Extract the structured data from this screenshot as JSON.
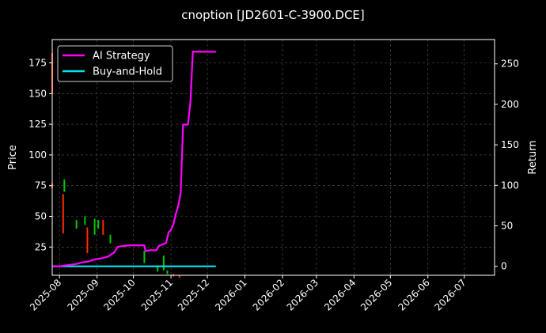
{
  "chart_data": {
    "type": "line",
    "title": "cnoption [JD2601-C-3900.DCE]",
    "xlabel": "",
    "ylabel_left": "Price",
    "ylabel_right": "Return",
    "x_ticks": [
      "2025-08",
      "2025-09",
      "2025-10",
      "2025-11",
      "2025-12",
      "2026-01",
      "2026-02",
      "2026-03",
      "2026-04",
      "2026-05",
      "2026-06",
      "2026-07"
    ],
    "x_range": [
      "2025-07-26",
      "2026-07-26"
    ],
    "ylim_left": [
      2,
      194
    ],
    "yticks_left": [
      25,
      50,
      75,
      100,
      125,
      150,
      175
    ],
    "ylim_right": [
      -11,
      280
    ],
    "yticks_right": [
      0,
      50,
      100,
      150,
      200,
      250
    ],
    "grid": true,
    "legend_position": "top-left",
    "colors": {
      "background": "#000000",
      "ai_strategy": "#ff00ff",
      "buy_and_hold": "#00e5ee",
      "candle_up": "#00c800",
      "candle_down": "#ff2a00",
      "grid": "#555555",
      "text": "#ffffff"
    },
    "series": [
      {
        "name": "AI Strategy",
        "axis": "right",
        "x": [
          "2025-07-26",
          "2025-08-01",
          "2025-08-05",
          "2025-08-10",
          "2025-08-15",
          "2025-08-20",
          "2025-08-25",
          "2025-08-29",
          "2025-09-01",
          "2025-09-05",
          "2025-09-10",
          "2025-09-15",
          "2025-09-18",
          "2025-09-22",
          "2025-09-28",
          "2025-10-03",
          "2025-10-10",
          "2025-10-11",
          "2025-10-15",
          "2025-10-20",
          "2025-10-22",
          "2025-10-28",
          "2025-10-30",
          "2025-11-01",
          "2025-11-03",
          "2025-11-05",
          "2025-11-07",
          "2025-11-09",
          "2025-11-11",
          "2025-11-13",
          "2025-11-15",
          "2025-11-17",
          "2025-11-19",
          "2025-11-22",
          "2025-12-08"
        ],
        "values": [
          0,
          0,
          1,
          2,
          3,
          5,
          6,
          8,
          9,
          10,
          12,
          17,
          24,
          25,
          26,
          26,
          26,
          19,
          20,
          20,
          25,
          29,
          42,
          45,
          52,
          65,
          75,
          90,
          175,
          175,
          175,
          202,
          265,
          265,
          265
        ]
      },
      {
        "name": "Buy-and-Hold",
        "axis": "right",
        "x": [
          "2025-07-26",
          "2025-12-08"
        ],
        "values": [
          0,
          0
        ]
      }
    ],
    "candles": [
      {
        "date": "2025-07-26",
        "open": 73,
        "close": 77,
        "dir": "down"
      },
      {
        "date": "2025-07-26",
        "open": 150,
        "close": 183,
        "dir": "down"
      },
      {
        "date": "2025-08-04",
        "open": 36,
        "close": 68,
        "dir": "down"
      },
      {
        "date": "2025-08-05",
        "open": 70,
        "close": 80,
        "dir": "up"
      },
      {
        "date": "2025-08-15",
        "open": 40,
        "close": 47,
        "dir": "up"
      },
      {
        "date": "2025-08-22",
        "open": 43,
        "close": 50,
        "dir": "up"
      },
      {
        "date": "2025-08-24",
        "open": 20,
        "close": 41,
        "dir": "down"
      },
      {
        "date": "2025-08-30",
        "open": 35,
        "close": 48,
        "dir": "up"
      },
      {
        "date": "2025-09-02",
        "open": 40,
        "close": 47,
        "dir": "up"
      },
      {
        "date": "2025-09-06",
        "open": 35,
        "close": 47,
        "dir": "down"
      },
      {
        "date": "2025-09-12",
        "open": 28,
        "close": 35,
        "dir": "up"
      },
      {
        "date": "2025-10-10",
        "open": 12,
        "close": 22,
        "dir": "up"
      },
      {
        "date": "2025-10-21",
        "open": 5,
        "close": 10,
        "dir": "up"
      },
      {
        "date": "2025-10-26",
        "open": 6,
        "close": 18,
        "dir": "up"
      },
      {
        "date": "2025-10-29",
        "open": 3,
        "close": 6,
        "dir": "up"
      },
      {
        "date": "2025-11-03",
        "open": 1,
        "close": 3,
        "dir": "down"
      },
      {
        "date": "2025-11-08",
        "open": 0,
        "close": 2,
        "dir": "down"
      }
    ]
  }
}
